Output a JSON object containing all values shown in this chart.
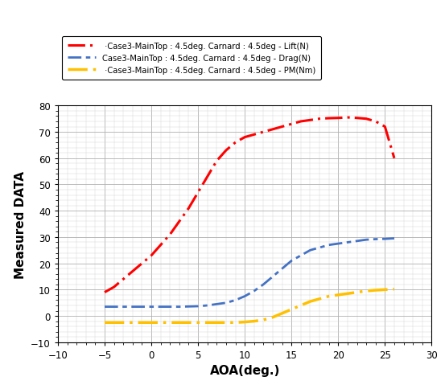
{
  "lift_x": [
    -5,
    -4,
    -3,
    -2,
    -1,
    0,
    1,
    2,
    3,
    4,
    5,
    6,
    7,
    8,
    9,
    10,
    11,
    12,
    13,
    14,
    15,
    16,
    17,
    18,
    19,
    20,
    21,
    22,
    23,
    24,
    25,
    26
  ],
  "lift_y": [
    9,
    11,
    14,
    17,
    20,
    23,
    27,
    31,
    36,
    41,
    47,
    53,
    59,
    63,
    66,
    68,
    69,
    70,
    71,
    72,
    73,
    74,
    74.5,
    75,
    75.2,
    75.3,
    75.5,
    75.3,
    75,
    74,
    72,
    60
  ],
  "drag_x": [
    -5,
    -4,
    -3,
    -2,
    -1,
    0,
    1,
    2,
    3,
    4,
    5,
    6,
    7,
    8,
    9,
    10,
    11,
    12,
    13,
    14,
    15,
    16,
    17,
    18,
    19,
    20,
    21,
    22,
    23,
    24,
    25,
    26
  ],
  "drag_y": [
    3.5,
    3.5,
    3.5,
    3.5,
    3.5,
    3.5,
    3.5,
    3.5,
    3.5,
    3.6,
    3.7,
    4.0,
    4.5,
    5.0,
    6.0,
    7.5,
    9.5,
    12,
    15,
    18,
    21,
    23,
    25,
    26,
    27,
    27.5,
    28,
    28.5,
    29,
    29.2,
    29.3,
    29.5
  ],
  "pm_x": [
    -5,
    -4,
    -3,
    -2,
    -1,
    0,
    1,
    2,
    3,
    4,
    5,
    6,
    7,
    8,
    9,
    10,
    11,
    12,
    13,
    14,
    15,
    16,
    17,
    18,
    19,
    20,
    21,
    22,
    23,
    24,
    25,
    26
  ],
  "pm_y": [
    -2.5,
    -2.5,
    -2.5,
    -2.5,
    -2.5,
    -2.5,
    -2.5,
    -2.5,
    -2.5,
    -2.5,
    -2.5,
    -2.5,
    -2.5,
    -2.5,
    -2.5,
    -2.3,
    -2.0,
    -1.5,
    -0.5,
    1.0,
    2.5,
    4.0,
    5.5,
    6.5,
    7.5,
    8.0,
    8.5,
    9.0,
    9.5,
    9.8,
    10.0,
    10.2
  ],
  "lift_color": "#ff0000",
  "drag_color": "#4472c4",
  "pm_color": "#ffc000",
  "legend_lift": " ·Case3-MainTop : 4.5deg. Carnard : 4.5deg - Lift(N)",
  "legend_drag": "Case3-MainTop : 4.5deg. Carnard : 4.5deg - Drag(N)",
  "legend_pm": " ·Case3-MainTop : 4.5deg. Carnard : 4.5deg - PM(Nm)",
  "xlabel": "AOA(deg.)",
  "ylabel": "Measured DATA",
  "xlim": [
    -10,
    30
  ],
  "ylim": [
    -10,
    80
  ],
  "xticks": [
    -10,
    -5,
    0,
    5,
    10,
    15,
    20,
    25,
    30
  ],
  "yticks": [
    -10,
    0,
    10,
    20,
    30,
    40,
    50,
    60,
    70,
    80
  ],
  "bg_color": "#ffffff",
  "grid_major_color": "#b0b0b0",
  "grid_minor_color": "#d0d0d0"
}
